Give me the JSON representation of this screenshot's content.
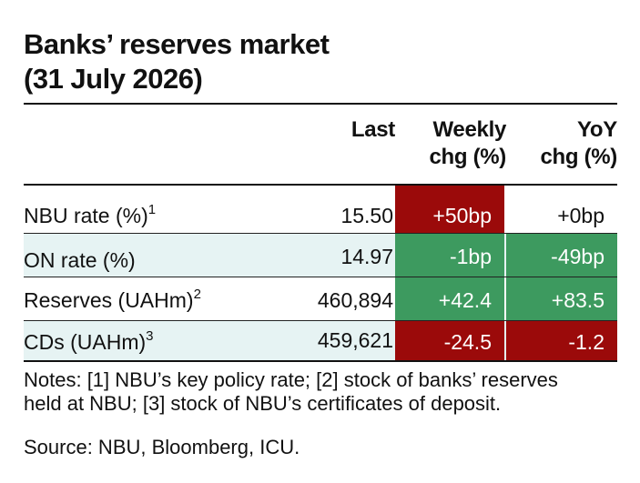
{
  "title": {
    "line1": "Banks’ reserves market",
    "line2": "(31 July 2026)"
  },
  "headers": {
    "last": "Last",
    "weekly_1": "Weekly",
    "weekly_2": "chg (%)",
    "yoy_1": "YoY",
    "yoy_2": "chg (%)"
  },
  "rows": [
    {
      "label": "NBU rate (%)",
      "note": "1",
      "last": "15.50",
      "weekly": "+50bp",
      "weekly_color": "#9b0a0a",
      "yoy": "+0bp",
      "yoy_color": "none"
    },
    {
      "label": "ON rate (%)",
      "note": "",
      "last": "14.97",
      "weekly": "-1bp",
      "weekly_color": "#3d9a5f",
      "yoy": "-49bp",
      "yoy_color": "#3d9a5f"
    },
    {
      "label": "Reserves (UAHm)",
      "note": "2",
      "last": "460,894",
      "weekly": "+42.4",
      "weekly_color": "#3d9a5f",
      "yoy": "+83.5",
      "yoy_color": "#3d9a5f"
    },
    {
      "label": "CDs (UAHm)",
      "note": "3",
      "last": "459,621",
      "weekly": "-24.5",
      "weekly_color": "#9b0a0a",
      "yoy": "-1.2",
      "yoy_color": "#9b0a0a"
    }
  ],
  "notes_line1": "Notes: [1] NBU’s key policy rate; [2] stock of banks’ reserves",
  "notes_line2": "held at NBU; [3] stock of NBU’s certificates of deposit.",
  "source": "Source: NBU, Bloomberg, ICU."
}
